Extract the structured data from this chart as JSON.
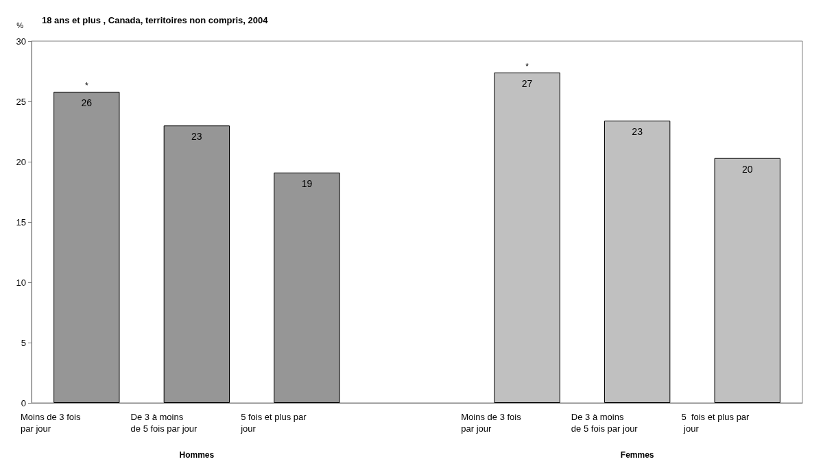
{
  "chart_data": {
    "type": "bar",
    "title": "18 ans et plus , Canada, territoires non compris, 2004",
    "ylabel": "%",
    "categories": [
      "Moins de 3 fois par jour",
      "De 3 à moins de 5 fois par jour",
      "5 fois et plus par jour",
      null,
      "Moins de 3 fois par jour",
      "De 3 à moins de 5 fois par jour",
      "5  fois et plus par jour"
    ],
    "values": [
      25.8,
      23.0,
      19.1,
      null,
      27.4,
      23.4,
      20.3
    ],
    "value_labels": [
      "26",
      "23",
      "19",
      null,
      "27",
      "23",
      "20"
    ],
    "colors": [
      "#969696",
      "#969696",
      "#969696",
      null,
      "#c0c0c0",
      "#c0c0c0",
      "#c0c0c0"
    ],
    "ylim": [
      0,
      30
    ],
    "yticks": [
      0,
      5,
      10,
      15,
      20,
      25,
      30
    ],
    "grid": false,
    "annotations": [
      "*",
      "*",
      "Hommes",
      "Femmes"
    ]
  }
}
